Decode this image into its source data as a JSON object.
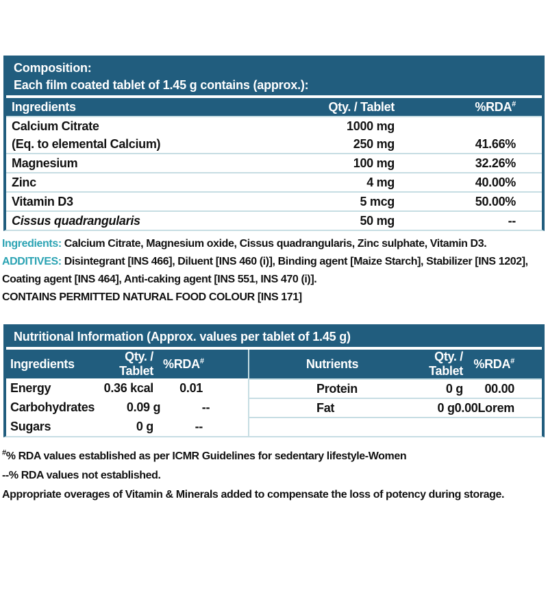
{
  "colors": {
    "header_bg": "#215D7E",
    "accent_text": "#2BA3B3",
    "grid_line": "#C6DDE3",
    "body_text": "#111111"
  },
  "composition": {
    "title": "Composition:",
    "subtitle": "Each film coated tablet of 1.45 g contains (approx.):",
    "columns": {
      "name": "Ingredients",
      "qty": "Qty. / Tablet",
      "rda": "%RDA",
      "rda_sup": "#"
    },
    "rows": [
      {
        "name": "Calcium Citrate",
        "name2": "(Eq. to elemental Calcium)",
        "qty": "1000 mg",
        "qty2": "250 mg",
        "rda": "",
        "rda2": "41.66%"
      },
      {
        "name": "Magnesium",
        "qty": "100 mg",
        "rda": "32.26%"
      },
      {
        "name": "Zinc",
        "qty": "4 mg",
        "rda": "40.00%"
      },
      {
        "name": "Vitamin D3",
        "qty": "5 mcg",
        "rda": "50.00%"
      },
      {
        "name": "Cissus quadrangularis",
        "qty": "50 mg",
        "rda": "--"
      }
    ]
  },
  "ingredients_note": {
    "label": "Ingredients:",
    "text": " Calcium Citrate, Magnesium oxide, Cissus quadrangularis, Zinc sulphate, Vitamin D3."
  },
  "additives_note": {
    "label": "ADDITIVES:",
    "text": " Disintegrant [INS 466], Diluent [INS 460 (i)], Binding agent [Maize Starch], Stabilizer [INS 1202], Coating agent [INS 464], Anti-caking agent [INS 551, INS 470 (i)]."
  },
  "contains_note": "CONTAINS PERMITTED NATURAL FOOD COLOUR [INS 171]",
  "nutrition": {
    "title": "Nutritional Information (Approx. values per tablet of 1.45 g)",
    "left": {
      "columns": {
        "name": "Ingredients",
        "qty": "Qty. / Tablet",
        "rda": "%RDA",
        "rda_sup": "#"
      },
      "rows": [
        {
          "name": "Energy",
          "qty": "0.36 kcal",
          "rda": "0.01"
        },
        {
          "name": "Carbohydrates",
          "qty": "0.09 g",
          "rda": "--"
        },
        {
          "name": "Sugars",
          "qty": "0 g",
          "rda": "--"
        }
      ]
    },
    "right": {
      "columns": {
        "name": "Nutrients",
        "qty": "Qty. / Tablet",
        "rda": "%RDA",
        "rda_sup": "#"
      },
      "rows": [
        {
          "name": "Protein",
          "qty": "0 g",
          "rda": "00.00"
        },
        {
          "name": "Fat",
          "qty_rda": "0 g0.00Lorem"
        }
      ]
    }
  },
  "footnotes": [
    {
      "sup": "#",
      "text": "% RDA values established as per ICMR Guidelines for sedentary lifestyle-Women"
    },
    {
      "sup": "",
      "text": "--% RDA values not established."
    },
    {
      "sup": "",
      "text": "Appropriate overages of Vitamin & Minerals added to compensate the loss of potency during storage."
    }
  ]
}
